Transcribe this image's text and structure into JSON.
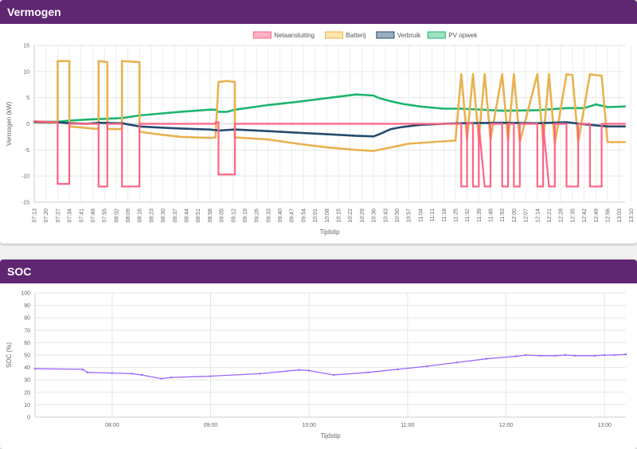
{
  "vermogen": {
    "title": "Vermogen",
    "chart_data": {
      "type": "line",
      "xlabel": "Tijdstip",
      "ylabel": "Vermogen (kW)",
      "ylim": [
        -15,
        15
      ],
      "yticks": [
        15,
        10,
        5,
        0,
        -5,
        -10,
        -15
      ],
      "categories": [
        "07:13",
        "07:20",
        "07:27",
        "07:34",
        "07:41",
        "07:48",
        "07:55",
        "08:02",
        "08:09",
        "08:16",
        "08:23",
        "08:30",
        "08:37",
        "08:44",
        "08:51",
        "08:58",
        "09:05",
        "09:12",
        "09:19",
        "09:26",
        "09:33",
        "09:40",
        "09:47",
        "09:54",
        "10:01",
        "10:08",
        "10:15",
        "10:22",
        "10:29",
        "10:36",
        "10:43",
        "10:50",
        "10:57",
        "11:04",
        "11:11",
        "11:18",
        "11:25",
        "11:32",
        "11:39",
        "11:46",
        "11:53",
        "12:00",
        "12:07",
        "12:14",
        "12:21",
        "12:28",
        "12:35",
        "12:42",
        "12:49",
        "12:56",
        "13:03",
        "13:10"
      ],
      "legend_position": "top",
      "grid": true,
      "series": [
        {
          "name": "Netaansluiting",
          "color": "#ff6384",
          "fill": "#ffb1c1",
          "points": [
            [
              0,
              0.5
            ],
            [
              4,
              0.3
            ],
            [
              4,
              -11.5
            ],
            [
              6,
              -11.5
            ],
            [
              6,
              0
            ],
            [
              11,
              0
            ],
            [
              11,
              -12
            ],
            [
              12.5,
              -12
            ],
            [
              12.5,
              0
            ],
            [
              15,
              0
            ],
            [
              15,
              -12
            ],
            [
              18,
              -12
            ],
            [
              18,
              0
            ],
            [
              31,
              0
            ],
            [
              31,
              0.3
            ],
            [
              31.5,
              0.3
            ],
            [
              31.5,
              -9.7
            ],
            [
              33,
              -9.7
            ],
            [
              33,
              -9.7
            ],
            [
              34.3,
              -9.7
            ],
            [
              34.3,
              0
            ],
            [
              49,
              0
            ],
            [
              50,
              0
            ],
            [
              58,
              0
            ],
            [
              59,
              0
            ],
            [
              73,
              0
            ],
            [
              73,
              -12
            ],
            [
              74,
              -12
            ],
            [
              74,
              0.2
            ],
            [
              75,
              0
            ],
            [
              75,
              -12
            ],
            [
              76,
              -12
            ],
            [
              76,
              0
            ],
            [
              77,
              -12
            ],
            [
              78,
              -12
            ],
            [
              78,
              0
            ],
            [
              80,
              0
            ],
            [
              80,
              -12
            ],
            [
              81,
              -12
            ],
            [
              81,
              0
            ],
            [
              82,
              0
            ],
            [
              82,
              -12
            ],
            [
              83,
              -12
            ],
            [
              83,
              0
            ],
            [
              86,
              0
            ],
            [
              86,
              -12
            ],
            [
              87,
              -12
            ],
            [
              87,
              0
            ],
            [
              88,
              -12
            ],
            [
              89,
              -12
            ],
            [
              89,
              0
            ],
            [
              91,
              0
            ],
            [
              91,
              -12
            ],
            [
              93,
              -12
            ],
            [
              93,
              0
            ],
            [
              95,
              0
            ],
            [
              95,
              -12
            ],
            [
              97,
              -12
            ],
            [
              97,
              0
            ],
            [
              101,
              0
            ]
          ]
        },
        {
          "name": "Batterij",
          "color": "#e8b250",
          "fill": "#ffe6aa",
          "points": [
            [
              0,
              0.3
            ],
            [
              4,
              0.2
            ],
            [
              4,
              12
            ],
            [
              6,
              12
            ],
            [
              6,
              -0.5
            ],
            [
              9,
              -0.8
            ],
            [
              11,
              -1
            ],
            [
              11,
              12
            ],
            [
              12.5,
              11.8
            ],
            [
              12.5,
              -1
            ],
            [
              15,
              -1
            ],
            [
              15,
              12
            ],
            [
              18,
              11.8
            ],
            [
              18,
              -1.5
            ],
            [
              21,
              -2
            ],
            [
              25,
              -2.5
            ],
            [
              30,
              -2.7
            ],
            [
              31,
              -2.6
            ],
            [
              31.5,
              8
            ],
            [
              33,
              8.2
            ],
            [
              34.3,
              8
            ],
            [
              34.3,
              -2.6
            ],
            [
              40,
              -3
            ],
            [
              45,
              -3.8
            ],
            [
              50,
              -4.5
            ],
            [
              55,
              -5
            ],
            [
              58,
              -5.2
            ],
            [
              61,
              -4.5
            ],
            [
              64,
              -3.8
            ],
            [
              68,
              -3.5
            ],
            [
              72,
              -3.2
            ],
            [
              73,
              9.5
            ],
            [
              74,
              -3
            ],
            [
              75,
              9.5
            ],
            [
              76,
              -3
            ],
            [
              77,
              9.5
            ],
            [
              78,
              -3
            ],
            [
              80,
              9.5
            ],
            [
              81,
              -3.3
            ],
            [
              82,
              9.5
            ],
            [
              83,
              -3.5
            ],
            [
              86,
              9.5
            ],
            [
              87,
              -3.5
            ],
            [
              88,
              9.5
            ],
            [
              89,
              -3.8
            ],
            [
              91,
              9.5
            ],
            [
              92,
              9.3
            ],
            [
              93,
              -3.5
            ],
            [
              95,
              9.5
            ],
            [
              96,
              9.3
            ],
            [
              97,
              9.2
            ],
            [
              98,
              -3.5
            ],
            [
              101,
              -3.5
            ]
          ]
        },
        {
          "name": "Verbruik",
          "color": "#254a6e",
          "fill": "#9aaec2",
          "points": [
            [
              0,
              0.4
            ],
            [
              4,
              0.3
            ],
            [
              6,
              0.1
            ],
            [
              9,
              0
            ],
            [
              11,
              0.2
            ],
            [
              15,
              0.1
            ],
            [
              18,
              -0.5
            ],
            [
              21,
              -0.7
            ],
            [
              25,
              -0.9
            ],
            [
              30,
              -1.1
            ],
            [
              31,
              -1.2
            ],
            [
              31.5,
              -1.3
            ],
            [
              34.3,
              -1.1
            ],
            [
              40,
              -1.4
            ],
            [
              45,
              -1.7
            ],
            [
              50,
              -2
            ],
            [
              55,
              -2.3
            ],
            [
              58,
              -2.4
            ],
            [
              59,
              -2
            ],
            [
              61,
              -1
            ],
            [
              63,
              -0.6
            ],
            [
              66,
              -0.2
            ],
            [
              70,
              0
            ],
            [
              73,
              0.1
            ],
            [
              80,
              0.2
            ],
            [
              86,
              0.1
            ],
            [
              91,
              0.3
            ],
            [
              95,
              -0.2
            ],
            [
              98,
              -0.5
            ],
            [
              101,
              -0.5
            ]
          ]
        },
        {
          "name": "PV opwek",
          "color": "#1db56d",
          "fill": "#9ee2c0",
          "points": [
            [
              0,
              0.4
            ],
            [
              4,
              0.4
            ],
            [
              6,
              0.6
            ],
            [
              9,
              0.8
            ],
            [
              11,
              0.9
            ],
            [
              15,
              1.1
            ],
            [
              18,
              1.6
            ],
            [
              21,
              1.9
            ],
            [
              25,
              2.3
            ],
            [
              30,
              2.7
            ],
            [
              31,
              2.7
            ],
            [
              31.5,
              2.3
            ],
            [
              33,
              2.3
            ],
            [
              34.3,
              2.7
            ],
            [
              40,
              3.6
            ],
            [
              45,
              4.2
            ],
            [
              50,
              4.9
            ],
            [
              55,
              5.6
            ],
            [
              58,
              5.4
            ],
            [
              59,
              4.9
            ],
            [
              61,
              4.3
            ],
            [
              63,
              3.8
            ],
            [
              66,
              3.3
            ],
            [
              70,
              2.9
            ],
            [
              73,
              2.9
            ],
            [
              80,
              2.5
            ],
            [
              86,
              2.6
            ],
            [
              91,
              3
            ],
            [
              94,
              3
            ],
            [
              96,
              3.7
            ],
            [
              98,
              3.2
            ],
            [
              101,
              3.3
            ]
          ]
        }
      ]
    }
  },
  "soc": {
    "title": "SOC",
    "chart_data": {
      "type": "line",
      "xlabel": "Tijdstip",
      "ylabel": "SOC (%)",
      "ylim": [
        0,
        100
      ],
      "yticks": [
        100,
        90,
        80,
        70,
        60,
        50,
        40,
        30,
        20,
        10,
        0
      ],
      "xrange_hours": [
        7.2167,
        13.2167
      ],
      "xticks": [
        {
          "h": 8,
          "label": "08:00"
        },
        {
          "h": 9,
          "label": "09:00"
        },
        {
          "h": 10,
          "label": "10:00"
        },
        {
          "h": 11,
          "label": "11:00"
        },
        {
          "h": 12,
          "label": "12:00"
        },
        {
          "h": 13,
          "label": "13:00"
        }
      ],
      "grid": true,
      "series": [
        {
          "color": "#9966ff",
          "points": [
            [
              7.2167,
              39
            ],
            [
              7.7,
              38.5
            ],
            [
              7.75,
              36
            ],
            [
              8.0,
              35.5
            ],
            [
              8.2,
              35
            ],
            [
              8.3,
              34
            ],
            [
              8.5,
              31
            ],
            [
              8.6,
              32
            ],
            [
              9.0,
              33
            ],
            [
              9.5,
              35
            ],
            [
              9.9,
              38
            ],
            [
              10.0,
              37.5
            ],
            [
              10.25,
              34
            ],
            [
              10.6,
              36
            ],
            [
              10.9,
              38.5
            ],
            [
              11.2,
              41
            ],
            [
              11.5,
              44
            ],
            [
              11.8,
              47
            ],
            [
              12.1,
              49
            ],
            [
              12.2,
              50
            ],
            [
              12.35,
              49.5
            ],
            [
              12.5,
              49.5
            ],
            [
              12.6,
              50
            ],
            [
              12.7,
              49.5
            ],
            [
              12.9,
              49.5
            ],
            [
              13.0,
              50
            ],
            [
              13.1,
              50
            ],
            [
              13.2167,
              50.5
            ]
          ]
        }
      ]
    }
  }
}
